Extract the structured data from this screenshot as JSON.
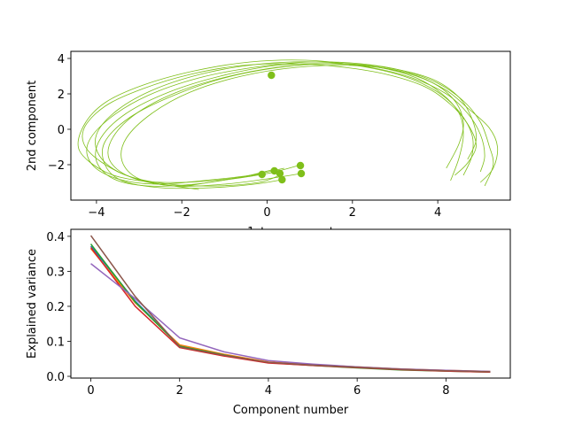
{
  "chart_data": [
    {
      "type": "scatter",
      "xlabel": "1st component",
      "ylabel": "2nd component",
      "xlim": [
        -4.6,
        5.7
      ],
      "ylim": [
        -4.0,
        4.4
      ],
      "xticks": [
        -4,
        -2,
        0,
        2,
        4
      ],
      "yticks": [
        -2,
        0,
        2,
        4
      ],
      "grid": false,
      "color": "#7fbf1a",
      "trajectories": [
        {
          "x": [
            -1.6,
            -1.9,
            -2.7,
            -3.5,
            -4.2,
            -4.3,
            -3.8,
            -2.9,
            -1.8,
            -0.6,
            0.7,
            1.8,
            2.8,
            3.7,
            4.3,
            4.7,
            4.9,
            4.7,
            4.4
          ],
          "y": [
            -3.4,
            -3.3,
            -3.0,
            -2.4,
            -1.2,
            0.0,
            1.3,
            2.3,
            3.1,
            3.6,
            3.7,
            3.5,
            3.1,
            2.4,
            1.4,
            0.3,
            -0.9,
            -1.9,
            -2.6
          ]
        },
        {
          "x": [
            0.3,
            -0.2,
            -1.2,
            -2.3,
            -3.3,
            -3.9,
            -4.0,
            -3.5,
            -2.6,
            -1.4,
            -0.1,
            1.2,
            2.4,
            3.4,
            4.2,
            4.7,
            5.0,
            5.1,
            5.0
          ],
          "y": [
            -2.6,
            -3.0,
            -3.2,
            -3.1,
            -2.6,
            -1.6,
            -0.3,
            1.1,
            2.3,
            3.2,
            3.7,
            3.8,
            3.5,
            2.9,
            2.0,
            0.9,
            -0.3,
            -1.5,
            -2.4
          ]
        },
        {
          "x": [
            0.8,
            0.0,
            -1.0,
            -2.2,
            -3.2,
            -3.7,
            -3.6,
            -3.0,
            -2.0,
            -0.7,
            0.6,
            1.9,
            3.0,
            3.9,
            4.5,
            4.8,
            4.9,
            4.7
          ],
          "y": [
            -2.5,
            -2.8,
            -3.1,
            -3.2,
            -2.7,
            -1.7,
            -0.4,
            1.0,
            2.2,
            3.1,
            3.6,
            3.7,
            3.4,
            2.8,
            1.8,
            0.6,
            -0.6,
            -1.7
          ]
        },
        {
          "x": [
            0.4,
            -0.4,
            -1.5,
            -2.6,
            -3.5,
            -4.1,
            -4.2,
            -3.7,
            -2.8,
            -1.6,
            -0.3,
            1.0,
            2.2,
            3.2,
            4.0,
            4.6,
            5.0,
            5.2,
            5.3,
            5.1
          ],
          "y": [
            -2.2,
            -2.6,
            -2.9,
            -3.1,
            -2.8,
            -2.0,
            -0.8,
            0.6,
            1.9,
            2.9,
            3.5,
            3.8,
            3.7,
            3.3,
            2.6,
            1.6,
            0.4,
            -0.9,
            -2.0,
            -3.2
          ]
        },
        {
          "x": [
            0.8,
            0.0,
            -1.1,
            -2.1,
            -3.0,
            -3.4,
            -3.3,
            -2.7,
            -1.8,
            -0.6,
            0.7,
            2.0,
            3.1,
            3.9,
            4.4,
            4.6,
            4.5,
            4.2
          ],
          "y": [
            -2.0,
            -2.5,
            -2.9,
            -3.2,
            -2.8,
            -1.8,
            -0.5,
            0.9,
            2.1,
            3.0,
            3.5,
            3.6,
            3.3,
            2.6,
            1.6,
            0.4,
            -0.8,
            -2.2
          ]
        },
        {
          "x": [
            -0.1,
            -0.9,
            -2.0,
            -3.0,
            -3.8,
            -4.4,
            -4.3,
            -3.8,
            -2.9,
            -1.7,
            -0.4,
            0.9,
            2.1,
            3.2,
            4.0,
            4.5,
            4.8,
            4.8,
            4.6
          ],
          "y": [
            -2.5,
            -2.8,
            -3.0,
            -2.9,
            -2.4,
            -1.2,
            0.2,
            1.5,
            2.5,
            3.3,
            3.8,
            3.9,
            3.6,
            3.0,
            2.1,
            1.0,
            -0.3,
            -1.5,
            -2.6
          ]
        },
        {
          "x": [
            0.1,
            -0.6,
            -1.7,
            -2.8,
            -3.6,
            -4.0,
            -3.9,
            -3.3,
            -2.3,
            -1.1,
            0.2,
            1.5,
            2.6,
            3.5,
            4.1,
            4.5,
            4.6,
            4.5,
            4.3
          ],
          "y": [
            -2.3,
            -2.7,
            -3.1,
            -3.2,
            -2.8,
            -1.8,
            -0.5,
            0.9,
            2.1,
            3.0,
            3.6,
            3.7,
            3.5,
            2.9,
            2.0,
            0.9,
            -0.3,
            -1.6,
            -2.9
          ]
        },
        {
          "x": [
            0.35,
            -0.3,
            -1.3,
            -2.5,
            -3.4,
            -3.8,
            -3.8,
            -3.2,
            -2.2,
            -1.0,
            0.3,
            1.5,
            2.6,
            3.5,
            4.2,
            4.7,
            5.2,
            5.4,
            5.3,
            5.0
          ],
          "y": [
            -2.85,
            -3.1,
            -3.3,
            -3.3,
            -2.9,
            -2.0,
            -0.7,
            0.7,
            1.9,
            2.9,
            3.5,
            3.7,
            3.5,
            3.0,
            2.2,
            1.2,
            0.1,
            -1.0,
            -2.2,
            -3.0
          ]
        }
      ],
      "start_points": [
        {
          "x": 0.1,
          "y": 3.05
        },
        {
          "x": -0.12,
          "y": -2.55
        },
        {
          "x": 0.17,
          "y": -2.35
        },
        {
          "x": 0.3,
          "y": -2.5
        },
        {
          "x": 0.35,
          "y": -2.85
        },
        {
          "x": 0.78,
          "y": -2.05
        },
        {
          "x": 0.8,
          "y": -2.5
        }
      ]
    },
    {
      "type": "line",
      "xlabel": "Component number",
      "ylabel": "Explained variance",
      "xlim": [
        -0.45,
        9.45
      ],
      "ylim": [
        -0.005,
        0.42
      ],
      "xticks": [
        0,
        2,
        4,
        6,
        8
      ],
      "yticks": [
        0.0,
        0.1,
        0.2,
        0.3,
        0.4
      ],
      "ytick_labels": [
        "0.0",
        "0.1",
        "0.2",
        "0.3",
        "0.4"
      ],
      "grid": false,
      "x": [
        0,
        1,
        2,
        3,
        4,
        5,
        6,
        7,
        8,
        9
      ],
      "series": [
        {
          "color": "#1f77b4",
          "values": [
            0.372,
            0.215,
            0.088,
            0.062,
            0.04,
            0.032,
            0.025,
            0.019,
            0.016,
            0.013
          ]
        },
        {
          "color": "#ff7f0e",
          "values": [
            0.365,
            0.21,
            0.09,
            0.063,
            0.041,
            0.033,
            0.027,
            0.021,
            0.017,
            0.014
          ]
        },
        {
          "color": "#2ca02c",
          "values": [
            0.378,
            0.212,
            0.086,
            0.061,
            0.039,
            0.031,
            0.024,
            0.018,
            0.015,
            0.012
          ]
        },
        {
          "color": "#d62728",
          "values": [
            0.368,
            0.2,
            0.082,
            0.058,
            0.038,
            0.031,
            0.025,
            0.019,
            0.015,
            0.012
          ]
        },
        {
          "color": "#9467bd",
          "values": [
            0.322,
            0.222,
            0.11,
            0.07,
            0.045,
            0.035,
            0.027,
            0.021,
            0.017,
            0.014
          ]
        },
        {
          "color": "#8c564b",
          "values": [
            0.402,
            0.228,
            0.084,
            0.06,
            0.04,
            0.032,
            0.026,
            0.02,
            0.016,
            0.013
          ]
        }
      ]
    }
  ]
}
